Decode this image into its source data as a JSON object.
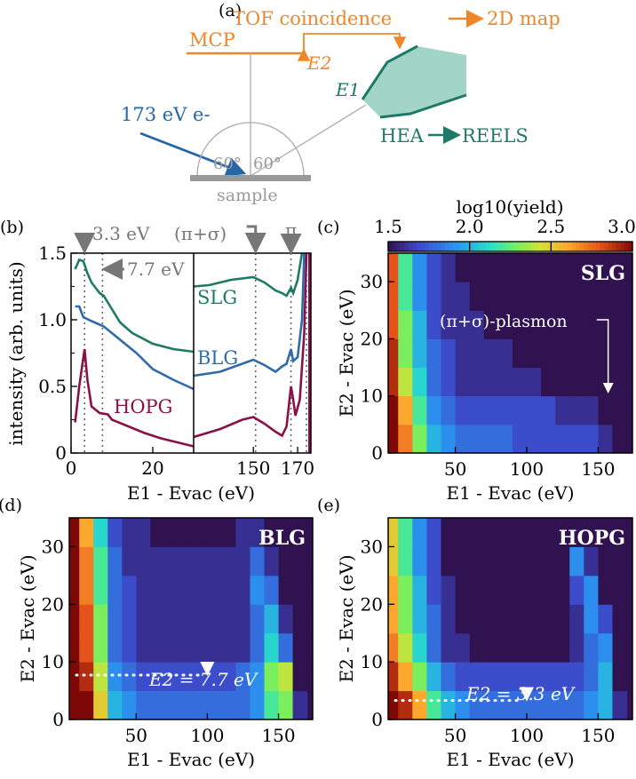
{
  "panel_a": {
    "label": "(a)",
    "tof_label": "TOF coincidence",
    "map_label": "2D map",
    "mcp_label": "MCP",
    "e2_label": "E2",
    "e1_label": "E1",
    "hea_label": "HEA",
    "reels_label": "REELS",
    "beam_label": "173 eV e-",
    "angle_left": "60°",
    "angle_right": "60°",
    "sample_label": "sample",
    "colors": {
      "orange": "#f0862a",
      "teal": "#1d7a66",
      "teal_fill": "#a3d4c8",
      "blue": "#2566a8",
      "gray": "#999999"
    }
  },
  "chart_data": [
    {
      "panel": "(b)",
      "type": "line",
      "ylabel": "intensity (arb. units)",
      "xlabel": "E1 - Evac (eV)",
      "ylim": [
        0,
        1.5
      ],
      "yticks": [
        "0",
        "0.5",
        "1.0",
        "1.5"
      ],
      "xlim_left": [
        0,
        30
      ],
      "xlim_right": [
        123,
        176
      ],
      "xticks_left": [
        "0",
        "20"
      ],
      "xticks_right": [
        "150",
        "170"
      ],
      "annotations": [
        {
          "text": "3.3 eV",
          "x": 3.3
        },
        {
          "text": "7.7 eV",
          "x": 7.7
        },
        {
          "text": "(π+σ)",
          "x": 151
        },
        {
          "text": "π",
          "x": 167
        }
      ],
      "extra_dotted_x": [
        174
      ],
      "series": [
        {
          "name": "SLG",
          "color": "#1d7a63",
          "left": [
            [
              1,
              1.38
            ],
            [
              2,
              1.45
            ],
            [
              3,
              1.44
            ],
            [
              4,
              1.35
            ],
            [
              5,
              1.28
            ],
            [
              7,
              1.2
            ],
            [
              8,
              1.18
            ],
            [
              10,
              1.08
            ],
            [
              12,
              0.98
            ],
            [
              15,
              0.9
            ],
            [
              20,
              0.82
            ],
            [
              25,
              0.78
            ],
            [
              30,
              0.76
            ]
          ],
          "right": [
            [
              123,
              1.25
            ],
            [
              130,
              1.26
            ],
            [
              140,
              1.3
            ],
            [
              150,
              1.32
            ],
            [
              155,
              1.28
            ],
            [
              160,
              1.22
            ],
            [
              163,
              1.2
            ],
            [
              165,
              1.18
            ],
            [
              167,
              1.24
            ],
            [
              168,
              1.2
            ],
            [
              170,
              1.3
            ],
            [
              172,
              1.5
            ]
          ]
        },
        {
          "name": "BLG",
          "color": "#2f6aaa",
          "left": [
            [
              1,
              1.1
            ],
            [
              2,
              1.1
            ],
            [
              3,
              1.02
            ],
            [
              5,
              0.99
            ],
            [
              8,
              0.95
            ],
            [
              12,
              0.85
            ],
            [
              16,
              0.75
            ],
            [
              20,
              0.63
            ],
            [
              25,
              0.55
            ],
            [
              30,
              0.48
            ]
          ],
          "right": [
            [
              123,
              0.58
            ],
            [
              135,
              0.61
            ],
            [
              145,
              0.67
            ],
            [
              150,
              0.7
            ],
            [
              155,
              0.66
            ],
            [
              160,
              0.61
            ],
            [
              163,
              0.65
            ],
            [
              165,
              0.67
            ],
            [
              167,
              0.78
            ],
            [
              168,
              0.69
            ],
            [
              170,
              0.72
            ],
            [
              172,
              1.0
            ],
            [
              173,
              1.5
            ]
          ]
        },
        {
          "name": "HOPG",
          "color": "#8b1048",
          "left": [
            [
              1,
              0.23
            ],
            [
              2,
              0.5
            ],
            [
              3.3,
              0.78
            ],
            [
              4,
              0.55
            ],
            [
              5,
              0.35
            ],
            [
              7,
              0.3
            ],
            [
              9,
              0.29
            ],
            [
              10,
              0.25
            ],
            [
              14,
              0.2
            ],
            [
              18,
              0.15
            ],
            [
              22,
              0.11
            ],
            [
              26,
              0.08
            ],
            [
              30,
              0.05
            ]
          ],
          "right": [
            [
              123,
              0.12
            ],
            [
              135,
              0.18
            ],
            [
              145,
              0.25
            ],
            [
              150,
              0.27
            ],
            [
              155,
              0.22
            ],
            [
              160,
              0.16
            ],
            [
              163,
              0.13
            ],
            [
              165,
              0.2
            ],
            [
              167,
              0.5
            ],
            [
              168,
              0.4
            ],
            [
              169,
              0.28
            ],
            [
              171,
              0.4
            ],
            [
              173,
              0.9
            ],
            [
              174,
              1.5
            ]
          ]
        }
      ]
    },
    {
      "panel": "(c)",
      "type": "heatmap",
      "sample": "SLG",
      "annotation": "(π+σ)-plasmon",
      "xlabel": "E1 - Evac (eV)",
      "ylabel": "E2 - Evac (eV)",
      "xlim": [
        3,
        174
      ],
      "ylim": [
        0,
        35
      ],
      "xticks": [
        "50",
        "100",
        "150"
      ],
      "yticks": [
        "0",
        "10",
        "20",
        "30"
      ],
      "colorbar": {
        "label": "log10(yield)",
        "range": [
          1.5,
          3.0
        ],
        "ticks": [
          "1.5",
          "2.0",
          "2.5",
          "3.0"
        ]
      },
      "x_bin_edges": [
        0,
        10,
        20,
        30,
        40,
        50,
        60,
        70,
        80,
        90,
        100,
        110,
        120,
        130,
        140,
        150,
        160,
        170
      ],
      "y_bin_edges": [
        0,
        5,
        10,
        15,
        20,
        25,
        30,
        35
      ],
      "values": [
        [
          3.0,
          2.7,
          2.3,
          2.0,
          1.9,
          1.8,
          1.8,
          1.8,
          1.8,
          1.7,
          1.7,
          1.7,
          1.7,
          1.7,
          1.7,
          1.6,
          1.5
        ],
        [
          3.0,
          2.6,
          2.2,
          1.9,
          1.8,
          1.7,
          1.7,
          1.7,
          1.7,
          1.7,
          1.7,
          1.7,
          1.6,
          1.6,
          1.6,
          1.5,
          1.5
        ],
        [
          2.9,
          2.4,
          2.1,
          1.8,
          1.7,
          1.6,
          1.6,
          1.6,
          1.6,
          1.6,
          1.6,
          1.5,
          1.5,
          1.5,
          1.5,
          1.5,
          1.5
        ],
        [
          2.9,
          2.3,
          2.0,
          1.8,
          1.7,
          1.6,
          1.6,
          1.6,
          1.6,
          1.5,
          1.5,
          1.5,
          1.5,
          1.5,
          1.5,
          1.5,
          1.5
        ],
        [
          2.8,
          2.3,
          2.0,
          1.7,
          1.6,
          1.6,
          1.6,
          1.5,
          1.5,
          1.5,
          1.5,
          1.5,
          1.5,
          1.5,
          1.5,
          1.5,
          1.5
        ],
        [
          2.8,
          2.2,
          1.9,
          1.7,
          1.6,
          1.6,
          1.5,
          1.5,
          1.5,
          1.5,
          1.5,
          1.5,
          1.5,
          1.5,
          1.5,
          1.5,
          1.5
        ],
        [
          2.8,
          2.2,
          1.9,
          1.7,
          1.6,
          1.5,
          1.5,
          1.5,
          1.5,
          1.5,
          1.5,
          1.5,
          1.5,
          1.5,
          1.5,
          1.5,
          1.5
        ]
      ]
    },
    {
      "panel": "(d)",
      "type": "heatmap",
      "sample": "BLG",
      "annotation": "E2 = 7.7 eV",
      "line_y": 7.7,
      "marker_x": 100,
      "xlabel": "E1 - Evac (eV)",
      "ylabel": "E2 - Evac (eV)",
      "xlim": [
        3,
        174
      ],
      "ylim": [
        0,
        35
      ],
      "xticks": [
        "50",
        "100",
        "150"
      ],
      "yticks": [
        "0",
        "10",
        "20",
        "30"
      ],
      "x_bin_edges": [
        0,
        10,
        20,
        30,
        40,
        50,
        60,
        70,
        80,
        90,
        100,
        110,
        120,
        130,
        140,
        150,
        160,
        170
      ],
      "y_bin_edges": [
        0,
        5,
        10,
        15,
        20,
        25,
        30,
        35
      ],
      "values": [
        [
          3.0,
          3.0,
          2.5,
          2.0,
          1.9,
          1.8,
          1.8,
          1.8,
          1.8,
          1.8,
          1.8,
          1.8,
          1.8,
          1.9,
          2.2,
          2.3,
          1.6
        ],
        [
          3.0,
          2.9,
          2.4,
          1.9,
          1.8,
          1.7,
          1.7,
          1.7,
          1.7,
          1.7,
          1.7,
          1.7,
          1.8,
          1.9,
          2.3,
          2.4,
          1.5
        ],
        [
          3.0,
          2.8,
          2.3,
          1.8,
          1.7,
          1.6,
          1.6,
          1.6,
          1.6,
          1.6,
          1.6,
          1.6,
          1.6,
          1.8,
          2.1,
          1.8,
          1.5
        ],
        [
          3.0,
          2.8,
          2.3,
          1.8,
          1.7,
          1.6,
          1.6,
          1.6,
          1.6,
          1.6,
          1.6,
          1.6,
          1.6,
          1.8,
          2.0,
          1.6,
          1.5
        ],
        [
          3.0,
          2.7,
          2.2,
          1.8,
          1.7,
          1.6,
          1.6,
          1.6,
          1.6,
          1.6,
          1.6,
          1.6,
          1.6,
          1.9,
          1.8,
          1.5,
          1.5
        ],
        [
          3.0,
          2.7,
          2.2,
          1.8,
          1.6,
          1.6,
          1.6,
          1.6,
          1.6,
          1.6,
          1.6,
          1.6,
          1.6,
          1.8,
          1.6,
          1.5,
          1.5
        ],
        [
          3.0,
          2.6,
          2.1,
          1.7,
          1.6,
          1.6,
          1.5,
          1.5,
          1.5,
          1.5,
          1.5,
          1.5,
          1.6,
          1.6,
          1.5,
          1.5,
          1.5
        ]
      ]
    },
    {
      "panel": "(e)",
      "type": "heatmap",
      "sample": "HOPG",
      "annotation": "E2 = 3.3 eV",
      "line_y": 3.3,
      "marker_x": 100,
      "xlabel": "E1 - Evac (eV)",
      "ylabel": "E2 - Evac (eV)",
      "xlim": [
        3,
        174
      ],
      "ylim": [
        0,
        35
      ],
      "xticks": [
        "50",
        "100",
        "150"
      ],
      "yticks": [
        "0",
        "10",
        "20",
        "30"
      ],
      "x_bin_edges": [
        0,
        10,
        20,
        30,
        40,
        50,
        60,
        70,
        80,
        90,
        100,
        110,
        120,
        130,
        140,
        150,
        160,
        170
      ],
      "y_bin_edges": [
        0,
        5,
        10,
        15,
        20,
        25,
        30,
        35
      ],
      "values": [
        [
          3.0,
          2.9,
          2.6,
          2.2,
          2.0,
          1.9,
          1.8,
          1.8,
          1.8,
          1.8,
          1.8,
          1.8,
          1.8,
          1.8,
          1.9,
          2.0,
          1.6
        ],
        [
          2.9,
          2.6,
          2.3,
          2.0,
          1.8,
          1.7,
          1.7,
          1.7,
          1.7,
          1.7,
          1.7,
          1.7,
          1.7,
          1.7,
          1.8,
          2.0,
          1.5
        ],
        [
          2.7,
          2.4,
          2.1,
          1.8,
          1.6,
          1.6,
          1.5,
          1.5,
          1.5,
          1.5,
          1.5,
          1.5,
          1.5,
          1.6,
          1.8,
          1.9,
          1.5
        ],
        [
          2.6,
          2.3,
          2.0,
          1.8,
          1.6,
          1.5,
          1.5,
          1.5,
          1.5,
          1.5,
          1.5,
          1.5,
          1.5,
          1.6,
          1.9,
          1.7,
          1.5
        ],
        [
          2.6,
          2.3,
          2.0,
          1.7,
          1.6,
          1.5,
          1.5,
          1.5,
          1.5,
          1.5,
          1.5,
          1.5,
          1.5,
          1.7,
          1.9,
          1.5,
          1.5
        ],
        [
          2.5,
          2.2,
          1.9,
          1.7,
          1.5,
          1.5,
          1.5,
          1.5,
          1.5,
          1.5,
          1.5,
          1.5,
          1.5,
          1.9,
          1.6,
          1.5,
          1.5
        ],
        [
          2.5,
          2.2,
          1.9,
          1.7,
          1.5,
          1.5,
          1.5,
          1.5,
          1.5,
          1.5,
          1.5,
          1.5,
          1.5,
          1.5,
          1.5,
          1.5,
          1.5
        ]
      ]
    }
  ]
}
